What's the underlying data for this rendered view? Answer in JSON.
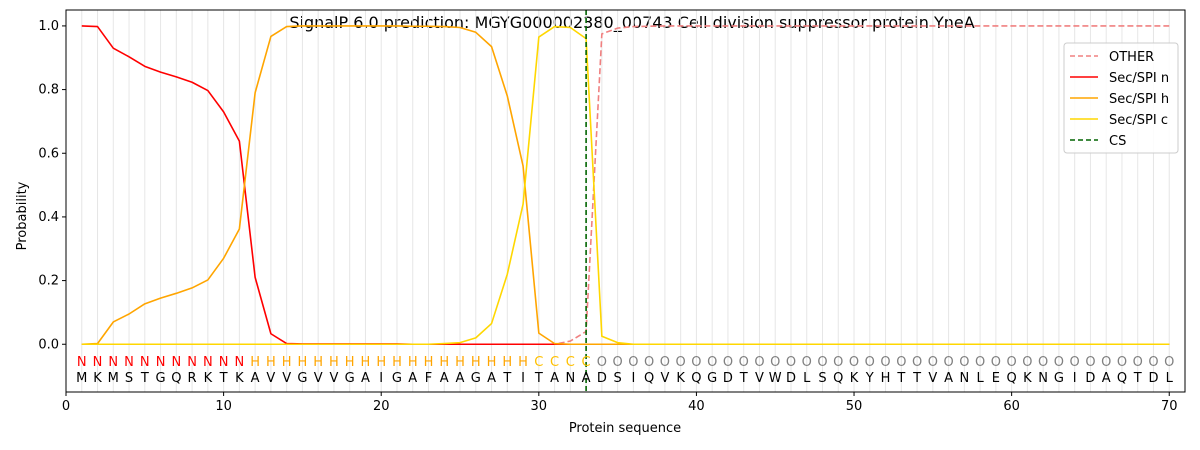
{
  "chart_data": {
    "type": "line",
    "title": "SignalP 6.0 prediction: MGYG000002380_00743 Cell division suppressor protein YneA",
    "xlabel": "Protein sequence",
    "ylabel": "Probability",
    "xlim": [
      0,
      71
    ],
    "ylim": [
      -0.15,
      1.05
    ],
    "x_ticks": [
      0,
      10,
      20,
      30,
      40,
      50,
      60,
      70
    ],
    "y_ticks": [
      0.0,
      0.2,
      0.4,
      0.6,
      0.8,
      1.0
    ],
    "y_tick_labels": [
      "0.0",
      "0.2",
      "0.4",
      "0.6",
      "0.8",
      "1.0"
    ],
    "grid": "vertical lines at each residue",
    "legend_position": "top-right",
    "sequence": [
      "M",
      "K",
      "M",
      "S",
      "T",
      "G",
      "Q",
      "R",
      "K",
      "T",
      "K",
      "A",
      "V",
      "V",
      "G",
      "V",
      "V",
      "G",
      "A",
      "I",
      "G",
      "A",
      "F",
      "A",
      "A",
      "G",
      "A",
      "T",
      "I",
      "T",
      "A",
      "N",
      "A",
      "D",
      "S",
      "I",
      "Q",
      "V",
      "K",
      "Q",
      "G",
      "D",
      "T",
      "V",
      "W",
      "D",
      "L",
      "S",
      "Q",
      "K",
      "Y",
      "H",
      "T",
      "T",
      "V",
      "A",
      "N",
      "L",
      "E",
      "Q",
      "K",
      "N",
      "G",
      "I",
      "D",
      "A",
      "Q",
      "T",
      "D",
      "L"
    ],
    "labels": [
      "N",
      "N",
      "N",
      "N",
      "N",
      "N",
      "N",
      "N",
      "N",
      "N",
      "N",
      "H",
      "H",
      "H",
      "H",
      "H",
      "H",
      "H",
      "H",
      "H",
      "H",
      "H",
      "H",
      "H",
      "H",
      "H",
      "H",
      "H",
      "H",
      "C",
      "C",
      "C",
      "C",
      "O",
      "O",
      "O",
      "O",
      "O",
      "O",
      "O",
      "O",
      "O",
      "O",
      "O",
      "O",
      "O",
      "O",
      "O",
      "O",
      "O",
      "O",
      "O",
      "O",
      "O",
      "O",
      "O",
      "O",
      "O",
      "O",
      "O",
      "O",
      "O",
      "O",
      "O",
      "O",
      "O",
      "O",
      "O",
      "O",
      "O"
    ],
    "label_colors": {
      "N": "#ff0000",
      "H": "#ffa500",
      "C": "#ffc000",
      "O": "#808080"
    },
    "cleavage_site": 33,
    "series": [
      {
        "name": "OTHER",
        "color": "#f08080",
        "style": "dashed",
        "values": [
          0,
          0,
          0,
          0,
          0,
          0,
          0,
          0,
          0,
          0,
          0,
          0,
          0,
          0,
          0,
          0,
          0,
          0,
          0,
          0,
          0,
          0,
          0,
          0,
          0,
          0,
          0,
          0,
          0,
          0,
          0,
          0.01,
          0.04,
          0.975,
          0.993,
          0.998,
          0.999,
          1,
          1,
          1,
          1,
          1,
          1,
          1,
          1,
          1,
          1,
          1,
          1,
          1,
          1,
          1,
          1,
          1,
          1,
          1,
          1,
          1,
          1,
          1,
          1,
          1,
          1,
          1,
          1,
          1,
          1,
          1,
          1,
          1
        ]
      },
      {
        "name": "Sec/SPI n",
        "color": "#ff0000",
        "style": "solid",
        "values": [
          1.0,
          0.998,
          0.93,
          0.903,
          0.873,
          0.855,
          0.84,
          0.823,
          0.797,
          0.73,
          0.638,
          0.21,
          0.033,
          0.002,
          0.001,
          0.001,
          0.001,
          0.001,
          0.001,
          0.001,
          0.001,
          0,
          0,
          0,
          0,
          0,
          0,
          0,
          0,
          0,
          0,
          0,
          0,
          0,
          0,
          0,
          0,
          0,
          0,
          0,
          0,
          0,
          0,
          0,
          0,
          0,
          0,
          0,
          0,
          0,
          0,
          0,
          0,
          0,
          0,
          0,
          0,
          0,
          0,
          0,
          0,
          0,
          0,
          0,
          0,
          0,
          0,
          0,
          0,
          0
        ]
      },
      {
        "name": "Sec/SPI h",
        "color": "#ffa500",
        "style": "solid",
        "values": [
          0,
          0.002,
          0.07,
          0.095,
          0.127,
          0.145,
          0.16,
          0.177,
          0.202,
          0.27,
          0.362,
          0.79,
          0.967,
          0.998,
          1.0,
          1.0,
          1.0,
          1.0,
          1.0,
          1.0,
          1.0,
          0.999,
          0.999,
          0.998,
          0.995,
          0.98,
          0.935,
          0.78,
          0.56,
          0.035,
          0.002,
          0,
          0,
          0,
          0,
          0,
          0,
          0,
          0,
          0,
          0,
          0,
          0,
          0,
          0,
          0,
          0,
          0,
          0,
          0,
          0,
          0,
          0,
          0,
          0,
          0,
          0,
          0,
          0,
          0,
          0,
          0,
          0,
          0,
          0,
          0,
          0,
          0,
          0,
          0
        ]
      },
      {
        "name": "Sec/SPI c",
        "color": "#ffd700",
        "style": "solid",
        "values": [
          0,
          0,
          0,
          0,
          0,
          0,
          0,
          0,
          0,
          0,
          0,
          0,
          0,
          0,
          0,
          0,
          0,
          0,
          0,
          0,
          0,
          0,
          0,
          0.002,
          0.005,
          0.02,
          0.065,
          0.22,
          0.44,
          0.965,
          0.998,
          0.995,
          0.96,
          0.025,
          0.005,
          0,
          0,
          0,
          0,
          0,
          0,
          0,
          0,
          0,
          0,
          0,
          0,
          0,
          0,
          0,
          0,
          0,
          0,
          0,
          0,
          0,
          0,
          0,
          0,
          0,
          0,
          0,
          0,
          0,
          0,
          0,
          0,
          0,
          0,
          0
        ]
      }
    ],
    "cs_legend": {
      "name": "CS",
      "color": "#006400",
      "style": "dashed"
    }
  }
}
